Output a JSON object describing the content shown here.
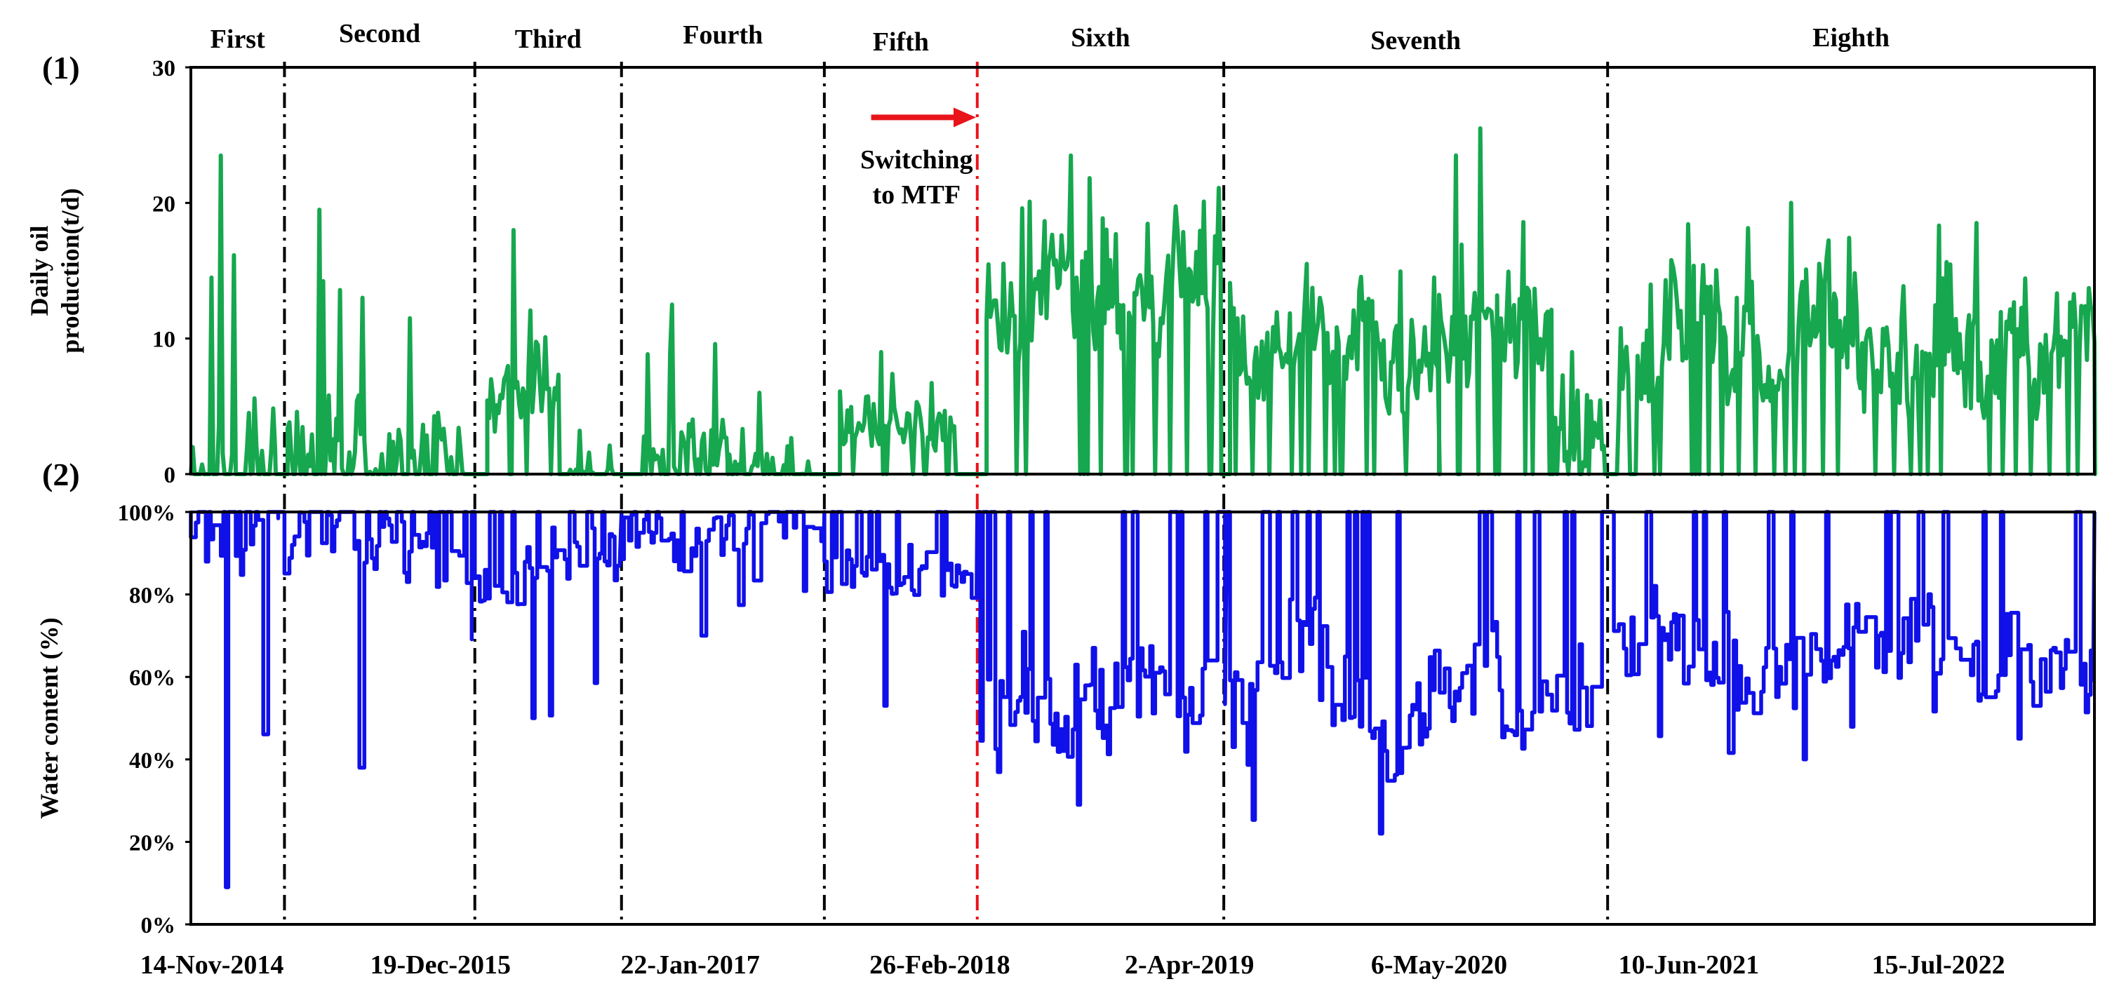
{
  "chart_data": {
    "type": "line",
    "panels": [
      {
        "label": "(1)",
        "ylabel_lines": [
          "Daily oil",
          "production(t/d)"
        ],
        "ylim": [
          0,
          30
        ],
        "yticks": [
          0,
          10,
          20,
          30
        ],
        "ytick_labels": [
          "0",
          "10",
          "20",
          "30"
        ],
        "series": [
          {
            "name": "Daily oil production",
            "unit": "t/d",
            "color": "#17a74f"
          }
        ]
      },
      {
        "label": "(2)",
        "ylabel_lines": [
          "Water content (%)"
        ],
        "ylim": [
          0,
          100
        ],
        "yticks": [
          0,
          20,
          40,
          60,
          80,
          100
        ],
        "ytick_labels": [
          "0%",
          "20%",
          "40%",
          "60%",
          "80%",
          "100%"
        ],
        "series": [
          {
            "name": "Water content",
            "unit": "%",
            "color": "#1010e8"
          }
        ]
      }
    ],
    "x_range_days": [
      0,
      3050
    ],
    "x_ticks": [
      {
        "day": 0,
        "label": "14-Nov-2014"
      },
      {
        "day": 400,
        "label": "19-Dec-2015"
      },
      {
        "day": 800,
        "label": "22-Jan-2017"
      },
      {
        "day": 1200,
        "label": "26-Feb-2018"
      },
      {
        "day": 1600,
        "label": "2-Apr-2019"
      },
      {
        "day": 2000,
        "label": "6-May-2020"
      },
      {
        "day": 2400,
        "label": "10-Jun-2021"
      },
      {
        "day": 2800,
        "label": "15-Jul-2022"
      }
    ],
    "phases": [
      {
        "name": "First",
        "start": 0,
        "end": 150
      },
      {
        "name": "Second",
        "start": 150,
        "end": 455
      },
      {
        "name": "Third",
        "start": 455,
        "end": 690
      },
      {
        "name": "Fourth",
        "start": 690,
        "end": 1015
      },
      {
        "name": "Fifth",
        "start": 1015,
        "end": 1260
      },
      {
        "name": "Sixth",
        "start": 1260,
        "end": 1655
      },
      {
        "name": "Seventh",
        "start": 1655,
        "end": 2270
      },
      {
        "name": "Eighth",
        "start": 2270,
        "end": 3050
      }
    ],
    "phase_boundaries": [
      {
        "day": 150,
        "color": "#000000"
      },
      {
        "day": 455,
        "color": "#000000"
      },
      {
        "day": 690,
        "color": "#000000"
      },
      {
        "day": 1015,
        "color": "#000000"
      },
      {
        "day": 1260,
        "color": "#e8141a"
      },
      {
        "day": 1655,
        "color": "#000000"
      },
      {
        "day": 2270,
        "color": "#000000"
      }
    ],
    "annotation": {
      "lines": [
        "Switching",
        "to MTF"
      ],
      "arrow_from_day": 1090,
      "arrow_to_day": 1258,
      "arrow_level": 26,
      "color": "#e8141a"
    },
    "oil_segments": [
      {
        "start": 0,
        "end": 135,
        "base": 2,
        "peak": 23.5,
        "vol": 3.5,
        "zero": 0.35,
        "seed": 11
      },
      {
        "start": 155,
        "end": 300,
        "base": 3,
        "peak": 19.5,
        "vol": 3.5,
        "zero": 0.35,
        "seed": 23
      },
      {
        "start": 300,
        "end": 440,
        "base": 1.2,
        "peak": 11.5,
        "vol": 2.0,
        "zero": 0.45,
        "seed": 31
      },
      {
        "start": 475,
        "end": 590,
        "base": 6,
        "peak": 18,
        "vol": 2.5,
        "zero": 0.05,
        "seed": 41
      },
      {
        "start": 590,
        "end": 680,
        "base": 0.2,
        "peak": 3.2,
        "vol": 0.5,
        "zero": 0.3,
        "seed": 43
      },
      {
        "start": 720,
        "end": 860,
        "base": 3.5,
        "peak": 12.5,
        "vol": 2.5,
        "zero": 0.2,
        "seed": 53
      },
      {
        "start": 860,
        "end": 1000,
        "base": 0.8,
        "peak": 6,
        "vol": 1.5,
        "zero": 0.35,
        "seed": 59
      },
      {
        "start": 1040,
        "end": 1225,
        "base": 3,
        "peak": 9,
        "vol": 1.6,
        "zero": 0.2,
        "seed": 61
      },
      {
        "start": 1275,
        "end": 1650,
        "base": 13,
        "peak": 23.5,
        "vol": 3.2,
        "zero": 0.08,
        "seed": 71
      },
      {
        "start": 1665,
        "end": 2000,
        "base": 10,
        "peak": 15.5,
        "vol": 2.8,
        "zero": 0.08,
        "seed": 79
      },
      {
        "start": 2000,
        "end": 2180,
        "base": 11,
        "peak": 25.5,
        "vol": 3.5,
        "zero": 0.12,
        "seed": 83
      },
      {
        "start": 2180,
        "end": 2265,
        "base": 3,
        "peak": 9,
        "vol": 2.5,
        "zero": 0.3,
        "seed": 89
      },
      {
        "start": 2285,
        "end": 3050,
        "base": 9,
        "peak": 20,
        "vol": 3.5,
        "zero": 0.12,
        "seed": 97
      }
    ],
    "water_segments": [
      {
        "start": 0,
        "end": 140,
        "base": 92,
        "floor": 9,
        "vol": 8,
        "seed": 101
      },
      {
        "start": 150,
        "end": 450,
        "base": 92,
        "floor": 38,
        "vol": 9,
        "seed": 103
      },
      {
        "start": 455,
        "end": 690,
        "base": 84,
        "floor": 50,
        "vol": 7,
        "seed": 107
      },
      {
        "start": 690,
        "end": 1015,
        "base": 92,
        "floor": 70,
        "vol": 6,
        "seed": 109
      },
      {
        "start": 1015,
        "end": 1260,
        "base": 88,
        "floor": 53,
        "vol": 7,
        "seed": 113
      },
      {
        "start": 1265,
        "end": 1660,
        "base": 55,
        "floor": 29,
        "vol": 12,
        "seed": 127
      },
      {
        "start": 1665,
        "end": 2270,
        "base": 55,
        "floor": 22,
        "vol": 13,
        "seed": 131
      },
      {
        "start": 2280,
        "end": 3050,
        "base": 66,
        "floor": 40,
        "vol": 10,
        "seed": 137
      }
    ]
  }
}
